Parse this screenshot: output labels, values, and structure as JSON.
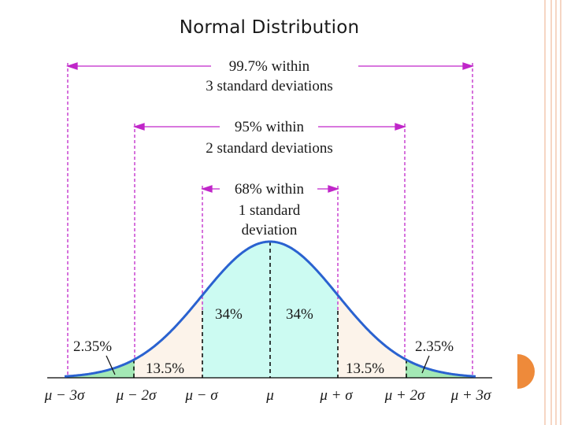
{
  "slide": {
    "title": "Normal Distribution",
    "colors": {
      "curve": "#2a62d0",
      "center_fill": "#ccfbf2",
      "mid_fill": "#fcf3ea",
      "tail_fill": "#a3e8b5",
      "range_arrows": "#c026c9",
      "text": "#1a1a1a",
      "border_lines": "#f4c9b0",
      "side_circle": "#ee8a3a"
    }
  },
  "diagram": {
    "ranges": [
      {
        "line1": "99.7% within",
        "line2": "3 standard deviations"
      },
      {
        "line1": "95% within",
        "line2": "2 standard deviations"
      },
      {
        "line1": "68% within",
        "line2": "1 standard",
        "line3": "deviation"
      }
    ],
    "areas": {
      "center_left": "34%",
      "center_right": "34%",
      "mid_left": "13.5%",
      "mid_right": "13.5%",
      "tail_left": "2.35%",
      "tail_right": "2.35%"
    },
    "axis_labels": [
      "μ − 3σ",
      "μ − 2σ",
      "μ − σ",
      "μ",
      "μ + σ",
      "μ + 2σ",
      "μ + 3σ"
    ]
  }
}
